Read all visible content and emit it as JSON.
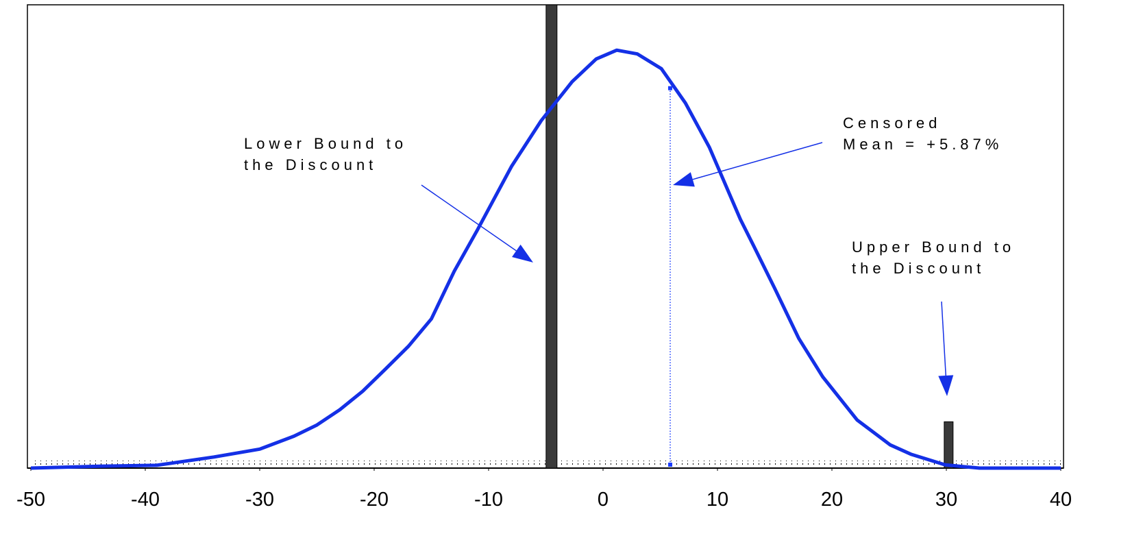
{
  "chart_data": {
    "type": "line",
    "xlim": [
      -50,
      40
    ],
    "xticks": [
      -50,
      -40,
      -30,
      -20,
      -10,
      0,
      10,
      20,
      30,
      40
    ],
    "ylim": [
      0,
      1
    ],
    "series": [
      {
        "color": "#1430e6",
        "x": [
          -50,
          -44,
          -39,
          -34,
          -30,
          -27,
          -25,
          -23,
          -21,
          -19,
          -17,
          -15,
          -13,
          -11,
          -8,
          -5.4,
          -2.7,
          -0.6,
          1.2,
          3,
          5.1,
          7.2,
          9.3,
          12,
          13.2,
          15,
          17.1,
          19.2,
          22.2,
          25.1,
          26.9,
          29.9,
          32.9,
          40
        ],
        "values": [
          0,
          0.004,
          0.006,
          0.024,
          0.041,
          0.069,
          0.093,
          0.126,
          0.166,
          0.214,
          0.263,
          0.322,
          0.425,
          0.513,
          0.651,
          0.75,
          0.834,
          0.883,
          0.902,
          0.894,
          0.862,
          0.788,
          0.692,
          0.537,
          0.478,
          0.388,
          0.28,
          0.197,
          0.104,
          0.05,
          0.03,
          0.007,
          0,
          0
        ]
      }
    ],
    "bars": {
      "color": "#3a3a3a",
      "x": [
        -4.5,
        30.2
      ],
      "values": [
        1,
        0.1
      ]
    },
    "mean": {
      "x": 5.87,
      "value": 0.82,
      "color": "#1a3cff"
    },
    "annotations": [
      {
        "lines": [
          "Lower Bound to",
          "the Discount"
        ]
      },
      {
        "lines": [
          "Censored",
          "Mean = +5.87%"
        ]
      },
      {
        "lines": [
          "Upper Bound to",
          "the Discount"
        ]
      }
    ]
  }
}
